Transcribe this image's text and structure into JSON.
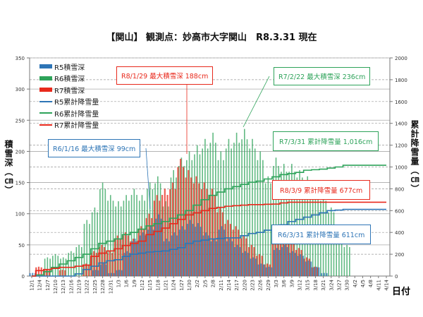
{
  "title": "【関山】 観測点：妙高市大字関山　R8.3.31 現在",
  "colors": {
    "r5": "#2e75b6",
    "r6": "#2ea35a",
    "r7": "#e8291c"
  },
  "chart_data": {
    "type": "bar+line",
    "title": "【関山】 観測点：妙高市大字関山　R8.3.31 現在",
    "xlabel": "日付",
    "ylabel": "積雪深（㎝）",
    "y2label": "累計降雪量（㎝）",
    "ylim": [
      0,
      350
    ],
    "y2lim": [
      0,
      2000
    ],
    "yticks": [
      "0",
      "50",
      "100",
      "150",
      "200",
      "250",
      "300",
      "350"
    ],
    "y2ticks": [
      "0",
      "200",
      "400",
      "600",
      "800",
      "1000",
      "1200",
      "1400",
      "1600",
      "1800",
      "2000"
    ],
    "categories": [
      "12/1",
      "12/4",
      "12/7",
      "12/10",
      "12/13",
      "12/16",
      "12/19",
      "12/22",
      "12/25",
      "12/28",
      "12/31",
      "1/3",
      "1/6",
      "1/9",
      "1/12",
      "1/15",
      "1/18",
      "1/21",
      "1/24",
      "1/27",
      "1/30",
      "2/2",
      "2/5",
      "2/8",
      "2/11",
      "2/14",
      "2/17",
      "2/20",
      "2/23",
      "2/26",
      "2/29",
      "3/3",
      "3/6",
      "3/9",
      "3/12",
      "3/15",
      "3/18",
      "3/21",
      "3/24",
      "3/27",
      "3/30",
      "4/2",
      "4/5",
      "4/8",
      "4/11",
      "4/14"
    ],
    "legend": [
      "R5積雪深",
      "R6積雪深",
      "R7積雪深",
      "R5累計降雪量",
      "R6累計降雪量",
      "R7累計降雪量"
    ],
    "legend_position": "top-left",
    "series": [
      {
        "name": "R5積雪深",
        "type": "bar",
        "axis": "left",
        "values": [
          5,
          0,
          0,
          0,
          0,
          0,
          0,
          0,
          10,
          20,
          5,
          10,
          40,
          60,
          70,
          80,
          99,
          60,
          70,
          80,
          90,
          85,
          70,
          60,
          80,
          60,
          50,
          40,
          30,
          20,
          15,
          45,
          50,
          40,
          35,
          25,
          15,
          5,
          0,
          0,
          0,
          0,
          0,
          0,
          0,
          0
        ]
      },
      {
        "name": "R6積雪深",
        "type": "bar",
        "axis": "left",
        "values": [
          0,
          0,
          30,
          35,
          30,
          40,
          50,
          90,
          110,
          150,
          130,
          120,
          130,
          140,
          130,
          150,
          160,
          120,
          170,
          190,
          200,
          210,
          220,
          230,
          200,
          220,
          230,
          236,
          220,
          200,
          160,
          190,
          180,
          180,
          170,
          160,
          150,
          130,
          110,
          80,
          50,
          0,
          0,
          0,
          0,
          0
        ]
      },
      {
        "name": "R7積雪深",
        "type": "bar",
        "axis": "left",
        "values": [
          0,
          15,
          10,
          0,
          10,
          0,
          0,
          20,
          40,
          50,
          40,
          65,
          70,
          60,
          80,
          100,
          130,
          140,
          150,
          188,
          170,
          160,
          150,
          140,
          110,
          90,
          80,
          65,
          50,
          35,
          20,
          60,
          65,
          60,
          45,
          30,
          15,
          0,
          0,
          0,
          0,
          0,
          0,
          0,
          0,
          0
        ]
      },
      {
        "name": "R5累計降雪量",
        "type": "line",
        "axis": "right",
        "values": [
          0,
          0,
          0,
          0,
          0,
          0,
          20,
          60,
          90,
          120,
          140,
          150,
          180,
          200,
          210,
          220,
          225,
          230,
          245,
          260,
          300,
          320,
          330,
          340,
          345,
          350,
          350,
          370,
          390,
          400,
          420,
          440,
          470,
          500,
          520,
          540,
          560,
          580,
          600,
          605,
          611,
          611,
          611,
          611,
          611,
          611
        ]
      },
      {
        "name": "R6累計降雪量",
        "type": "line",
        "axis": "right",
        "values": [
          0,
          10,
          40,
          80,
          110,
          140,
          170,
          200,
          250,
          300,
          320,
          340,
          380,
          400,
          430,
          460,
          480,
          500,
          530,
          560,
          600,
          650,
          700,
          740,
          770,
          800,
          820,
          840,
          860,
          870,
          890,
          910,
          930,
          940,
          950,
          970,
          975,
          980,
          990,
          1000,
          1016,
          1016,
          1016,
          1016,
          1016,
          1016
        ]
      },
      {
        "name": "R7累計降雪量",
        "type": "line",
        "axis": "right",
        "values": [
          0,
          50,
          60,
          70,
          80,
          80,
          90,
          100,
          180,
          210,
          230,
          250,
          280,
          300,
          320,
          380,
          410,
          440,
          480,
          520,
          560,
          580,
          600,
          620,
          630,
          640,
          645,
          650,
          655,
          655,
          658,
          660,
          670,
          677,
          677,
          677,
          677,
          677,
          677,
          677,
          677,
          677,
          677,
          677,
          677,
          677
        ]
      }
    ],
    "annotations": [
      {
        "text": "R8/1/29 最大積雪深 188cm",
        "series": "R7"
      },
      {
        "text": "R7/2/22 最大積雪深 236cm",
        "series": "R6"
      },
      {
        "text": "R6/1/16 最大積雪深 99cm",
        "series": "R5"
      },
      {
        "text": "R7/3/31 累計降雪量 1,016cm",
        "series": "R6"
      },
      {
        "text": "R8/3/9 累計降雪量 677cm",
        "series": "R7"
      },
      {
        "text": "R6/3/31 累計降雪量 611cm",
        "series": "R5"
      }
    ]
  }
}
